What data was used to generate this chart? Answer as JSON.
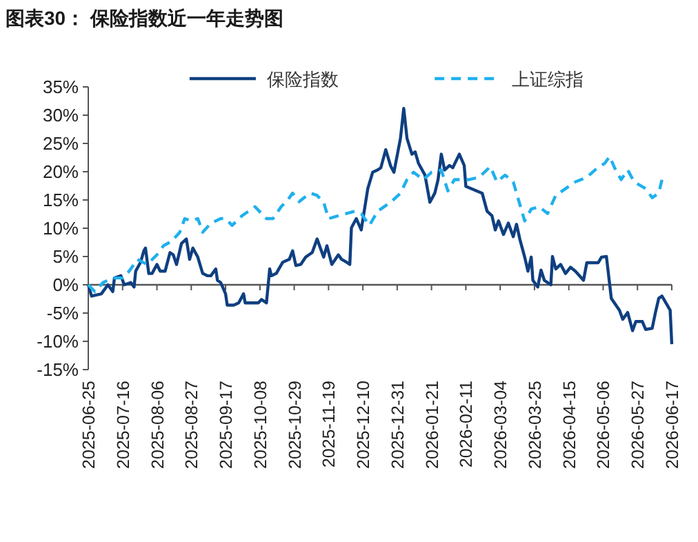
{
  "chart_data": {
    "type": "line",
    "title": "图表30：  保险指数近一年走势图",
    "legend": "top",
    "xlim": [
      "2025-06-25",
      "2026-06-17"
    ],
    "xticks": [
      "2025-06-25",
      "2025-07-16",
      "2025-08-06",
      "2025-08-27",
      "2025-09-17",
      "2025-10-08",
      "2025-10-29",
      "2025-11-19",
      "2025-12-10",
      "2025-12-31",
      "2026-01-21",
      "2026-02-11",
      "2026-03-04",
      "2026-03-25",
      "2026-04-15",
      "2026-05-06",
      "2026-05-27",
      "2026-06-17"
    ],
    "ylim": [
      -15,
      35
    ],
    "yticks": [
      {
        "value": 35,
        "label": "35%"
      },
      {
        "value": 30,
        "label": "30%"
      },
      {
        "value": 25,
        "label": "25%"
      },
      {
        "value": 20,
        "label": "20%"
      },
      {
        "value": 15,
        "label": "15%"
      },
      {
        "value": 10,
        "label": "10%"
      },
      {
        "value": 5,
        "label": "5%"
      },
      {
        "value": 0,
        "label": "0%"
      },
      {
        "value": -5,
        "label": "-5%"
      },
      {
        "value": -10,
        "label": "-10%"
      },
      {
        "value": -15,
        "label": "-15%"
      }
    ],
    "series": [
      {
        "name": "保险指数",
        "color": "#0f3f80",
        "line_style": "solid",
        "x": [
          "2025-06-25",
          "2025-06-27",
          "2025-07-03",
          "2025-07-07",
          "2025-07-10",
          "2025-07-11",
          "2025-07-15",
          "2025-07-17",
          "2025-07-21",
          "2025-07-23",
          "2025-07-24",
          "2025-07-27",
          "2025-07-29",
          "2025-07-30",
          "2025-08-01",
          "2025-08-03",
          "2025-08-06",
          "2025-08-08",
          "2025-08-11",
          "2025-08-14",
          "2025-08-16",
          "2025-08-18",
          "2025-08-21",
          "2025-08-24",
          "2025-08-26",
          "2025-08-28",
          "2025-08-31",
          "2025-09-03",
          "2025-09-06",
          "2025-09-08",
          "2025-09-11",
          "2025-09-12",
          "2025-09-14",
          "2025-09-17",
          "2025-09-18",
          "2025-09-22",
          "2025-09-25",
          "2025-09-28",
          "2025-09-29",
          "2025-10-07",
          "2025-10-09",
          "2025-10-12",
          "2025-10-14",
          "2025-10-15",
          "2025-10-18",
          "2025-10-22",
          "2025-10-26",
          "2025-10-28",
          "2025-10-30",
          "2025-11-02",
          "2025-11-05",
          "2025-11-07",
          "2025-11-09",
          "2025-11-12",
          "2025-11-14",
          "2025-11-16",
          "2025-11-18",
          "2025-11-21",
          "2025-11-25",
          "2025-11-27",
          "2025-11-30",
          "2025-12-02",
          "2025-12-03",
          "2025-12-06",
          "2025-12-09",
          "2025-12-13",
          "2025-12-16",
          "2025-12-19",
          "2025-12-21",
          "2025-12-24",
          "2025-12-27",
          "2025-12-29",
          "2026-01-02",
          "2026-01-04",
          "2026-01-06",
          "2026-01-09",
          "2026-01-11",
          "2026-01-13",
          "2026-01-17",
          "2026-01-20",
          "2026-01-23",
          "2026-01-25",
          "2026-01-27",
          "2026-01-29",
          "2026-02-01",
          "2026-02-03",
          "2026-02-07",
          "2026-02-10",
          "2026-02-11",
          "2026-02-21",
          "2026-02-24",
          "2026-02-27",
          "2026-03-01",
          "2026-03-03",
          "2026-03-06",
          "2026-03-09",
          "2026-03-12",
          "2026-03-14",
          "2026-03-16",
          "2026-03-19",
          "2026-03-21",
          "2026-03-23",
          "2026-03-24",
          "2026-03-27",
          "2026-03-29",
          "2026-03-31",
          "2026-04-04",
          "2026-04-05",
          "2026-04-07",
          "2026-04-10",
          "2026-04-13",
          "2026-04-16",
          "2026-04-19",
          "2026-04-24",
          "2026-04-26",
          "2026-05-03",
          "2026-05-05",
          "2026-05-08",
          "2026-05-11",
          "2026-05-16",
          "2026-05-18",
          "2026-05-21",
          "2026-05-24",
          "2026-05-26",
          "2026-05-30",
          "2026-06-01",
          "2026-06-05",
          "2026-06-07",
          "2026-06-09",
          "2026-06-11",
          "2026-06-16",
          "2026-06-17"
        ],
        "values": [
          0,
          -2.0,
          -1.6,
          0,
          -1.2,
          1.2,
          1.6,
          0,
          0.4,
          -0.4,
          2.4,
          4,
          6,
          6.5,
          2,
          2,
          3.6,
          2.4,
          2.4,
          5.7,
          5.3,
          3.6,
          7.3,
          8.1,
          4.5,
          6.5,
          4.9,
          2,
          1.6,
          1.6,
          2.8,
          0.8,
          0.4,
          -1.6,
          -3.6,
          -3.6,
          -3.2,
          -1.6,
          -3.2,
          -3.2,
          -2.6,
          -3.2,
          2.8,
          1.6,
          2,
          4,
          4.5,
          6,
          3.4,
          3.6,
          4.9,
          5.3,
          5.7,
          8.1,
          6.5,
          4.9,
          6.9,
          3.6,
          5.3,
          4.5,
          4,
          3.6,
          10.1,
          11.7,
          9.7,
          17,
          19.9,
          20.3,
          20.7,
          23.9,
          21,
          19.9,
          25.9,
          31.2,
          25.9,
          23.1,
          23.5,
          21.5,
          19.4,
          14.6,
          16.2,
          18.6,
          23.1,
          20.3,
          21.1,
          20.7,
          23.1,
          21.1,
          17.4,
          16.2,
          13,
          12.2,
          9.7,
          11.3,
          8.9,
          10.9,
          8.5,
          10.7,
          8.1,
          4.9,
          2.4,
          4.9,
          0.8,
          -0.4,
          2.6,
          0.8,
          0,
          5,
          2.8,
          3.6,
          2,
          3.1,
          2.4,
          0.8,
          3.9,
          3.9,
          4.9,
          5,
          -2.4,
          -4.5,
          -6.1,
          -4.9,
          -8.1,
          -6.5,
          -6.5,
          -7.9,
          -7.7,
          -4.9,
          -2.4,
          -2,
          -4.5,
          -10.5
        ]
      },
      {
        "name": "上证综指",
        "color": "#1eb0ee",
        "line_style": "dashed",
        "x": [
          "2025-06-25",
          "2025-06-29",
          "2025-07-04",
          "2025-07-10",
          "2025-07-16",
          "2025-07-20",
          "2025-07-25",
          "2025-07-31",
          "2025-08-06",
          "2025-08-10",
          "2025-08-15",
          "2025-08-20",
          "2025-08-23",
          "2025-08-27",
          "2025-08-31",
          "2025-09-03",
          "2025-09-08",
          "2025-09-14",
          "2025-09-17",
          "2025-09-21",
          "2025-09-27",
          "2025-10-01",
          "2025-10-05",
          "2025-10-09",
          "2025-10-12",
          "2025-10-16",
          "2025-10-21",
          "2025-10-25",
          "2025-10-28",
          "2025-11-01",
          "2025-11-04",
          "2025-11-08",
          "2025-11-12",
          "2025-11-16",
          "2025-11-19",
          "2025-11-25",
          "2025-11-30",
          "2025-12-05",
          "2025-12-09",
          "2025-12-14",
          "2025-12-19",
          "2025-12-27",
          "2026-01-02",
          "2026-01-06",
          "2026-01-10",
          "2026-01-16",
          "2026-01-21",
          "2026-01-27",
          "2026-01-31",
          "2026-02-04",
          "2026-02-13",
          "2026-02-19",
          "2026-02-26",
          "2026-03-02",
          "2026-03-07",
          "2026-03-12",
          "2026-03-14",
          "2026-03-19",
          "2026-03-23",
          "2026-03-28",
          "2026-04-02",
          "2026-04-07",
          "2026-04-13",
          "2026-04-19",
          "2026-04-26",
          "2026-05-01",
          "2026-05-07",
          "2026-05-10",
          "2026-05-13",
          "2026-05-17",
          "2026-05-21",
          "2026-05-25",
          "2026-06-01",
          "2026-06-05",
          "2026-06-09",
          "2026-06-11"
        ],
        "values": [
          0,
          -1.2,
          0.4,
          1.2,
          1.2,
          2.4,
          4.5,
          3.6,
          5.3,
          6.9,
          7.7,
          9.3,
          11.7,
          11.3,
          11.7,
          9.3,
          10.9,
          11.7,
          11.7,
          10.5,
          12.2,
          13,
          13.8,
          12.6,
          11.7,
          11.7,
          13.8,
          15,
          16.2,
          14.7,
          15.4,
          16.2,
          15.8,
          14.6,
          11.7,
          12.2,
          12.6,
          13,
          12.6,
          10.5,
          13,
          14.6,
          16.2,
          18.6,
          19.9,
          18.6,
          19.9,
          20.3,
          16.6,
          18.6,
          18.6,
          19,
          20.9,
          18.2,
          19.4,
          18.2,
          16.2,
          11.3,
          13.4,
          13.8,
          12.6,
          15.8,
          17,
          18.2,
          19,
          20.3,
          21.5,
          22.7,
          20.7,
          18.6,
          20.3,
          18.2,
          17,
          15.4,
          16.2,
          18.6
        ]
      }
    ]
  }
}
